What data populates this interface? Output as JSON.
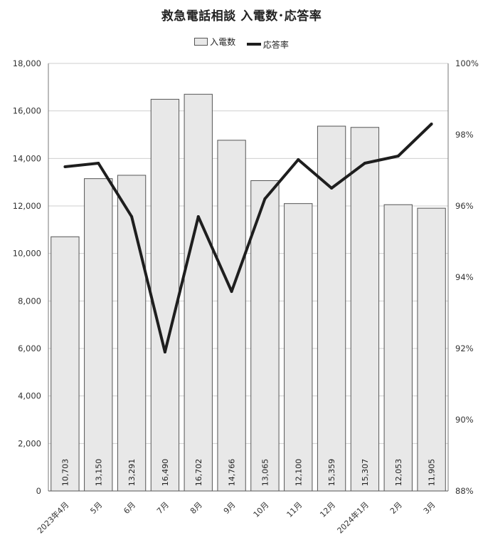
{
  "chart_data": {
    "type": "bar",
    "title": "救急電話相談 入電数･応答率",
    "categories": [
      "2023年4月",
      "5月",
      "6月",
      "7月",
      "8月",
      "9月",
      "10月",
      "11月",
      "12月",
      "2024年1月",
      "2月",
      "3月"
    ],
    "series": [
      {
        "name": "入電数",
        "type": "bar",
        "axis": "left",
        "values": [
          10703,
          13150,
          13291,
          16490,
          16702,
          14766,
          13065,
          12100,
          15359,
          15307,
          12053,
          11905
        ],
        "labels": [
          "10,703",
          "13,150",
          "13,291",
          "16,490",
          "16,702",
          "14,766",
          "13,065",
          "12,100",
          "15,359",
          "15,307",
          "12,053",
          "11,905"
        ]
      },
      {
        "name": "応答率",
        "type": "line",
        "axis": "right",
        "values": [
          97.1,
          97.2,
          95.7,
          91.9,
          95.7,
          93.6,
          96.2,
          97.3,
          96.5,
          97.2,
          97.4,
          98.3
        ]
      }
    ],
    "y_left": {
      "min": 0,
      "max": 18000,
      "ticks": [
        "0",
        "2,000",
        "4,000",
        "6,000",
        "8,000",
        "10,000",
        "12,000",
        "14,000",
        "16,000",
        "18,000"
      ]
    },
    "y_right": {
      "min": 88,
      "max": 100,
      "ticks": [
        "88%",
        "90%",
        "92%",
        "94%",
        "96%",
        "98%",
        "100%"
      ]
    },
    "grid": true,
    "legend_position": "top",
    "colors": {
      "bar_fill": "#e8e8e8",
      "bar_stroke": "#555555",
      "line": "#1e1e1e",
      "grid": "#cfcfcf"
    }
  }
}
